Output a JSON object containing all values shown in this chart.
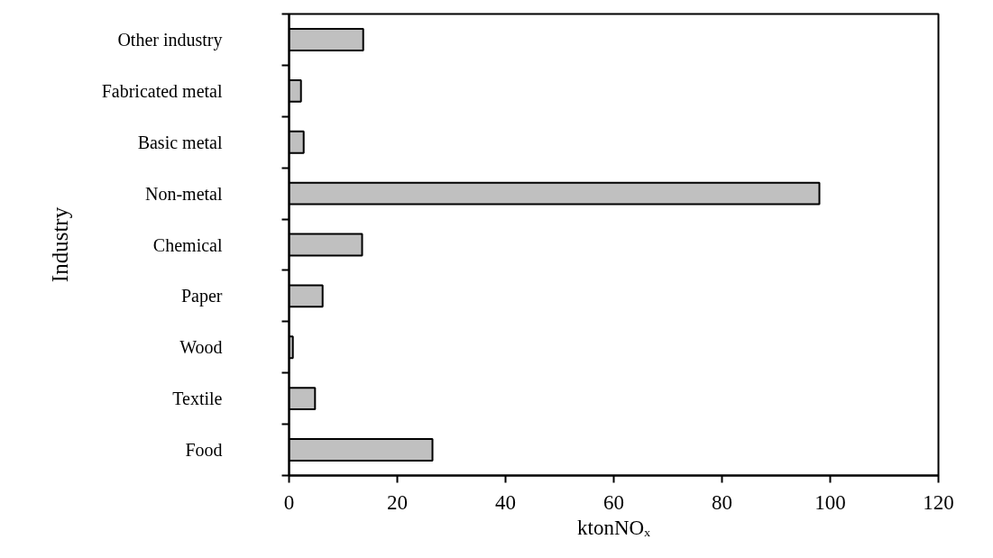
{
  "chart_data": {
    "type": "bar",
    "orientation": "horizontal",
    "xlabel": "ktonNOₓ",
    "ylabel": "Industry",
    "categories": [
      "Other industry",
      "Fabricated metal",
      "Basic metal",
      "Non-metal",
      "Chemical",
      "Paper",
      "Wood",
      "Textile",
      "Food"
    ],
    "values": [
      13.7,
      2.2,
      2.7,
      98,
      13.5,
      6.2,
      0.7,
      4.8,
      26.5
    ],
    "color": "#c0c0c0",
    "xlim": [
      0,
      120
    ],
    "xticks": [
      0,
      20,
      40,
      60,
      80,
      100,
      120
    ],
    "grid": false
  }
}
